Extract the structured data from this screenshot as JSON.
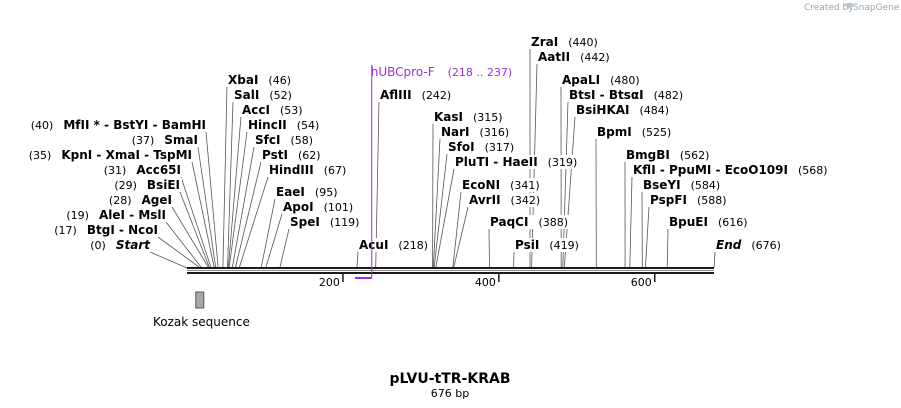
{
  "plasmid": {
    "name": "pLVU-tTR-KRAB",
    "length_label": "676 bp",
    "length": 676
  },
  "branding": {
    "created_by": "Created by",
    "product": "SnapGene"
  },
  "colors": {
    "backbone": "#1a1a1a",
    "primer": "#9b30d9",
    "feature": "#a9a9a9",
    "line": "#555555"
  },
  "axis_ticks": [
    {
      "label": "200",
      "value": 200
    },
    {
      "label": "400",
      "value": 400
    },
    {
      "label": "600",
      "value": 600
    }
  ],
  "primer": {
    "name": "hUBCpro-F",
    "range": "(218 .. 237)",
    "start": 218,
    "end": 237
  },
  "feature": {
    "name": "Kozak sequence",
    "start": 10,
    "end": 18
  },
  "sites": [
    {
      "pos": 46,
      "pos_label": "(46)",
      "parts": [
        {
          "n": "XbaI",
          "sep": ""
        }
      ]
    },
    {
      "pos": 52,
      "pos_label": "(52)",
      "parts": [
        {
          "n": "SalI",
          "sep": ""
        }
      ]
    },
    {
      "pos": 53,
      "pos_label": "(53)",
      "parts": [
        {
          "n": "AccI",
          "sep": ""
        }
      ]
    },
    {
      "pos": 54,
      "pos_label": "(54)",
      "parts": [
        {
          "n": "HincII",
          "sep": ""
        }
      ]
    },
    {
      "pos": 58,
      "pos_label": "(58)",
      "parts": [
        {
          "n": "SfcI",
          "sep": ""
        }
      ]
    },
    {
      "pos": 62,
      "pos_label": "(62)",
      "parts": [
        {
          "n": "PstI",
          "sep": ""
        }
      ]
    },
    {
      "pos": 67,
      "pos_label": "(67)",
      "parts": [
        {
          "n": "HindIII",
          "sep": ""
        }
      ]
    },
    {
      "pos": 95,
      "pos_label": "(95)",
      "parts": [
        {
          "n": "EaeI",
          "sep": ""
        }
      ]
    },
    {
      "pos": 101,
      "pos_label": "(101)",
      "parts": [
        {
          "n": "ApoI",
          "sep": ""
        }
      ]
    },
    {
      "pos": 119,
      "pos_label": "(119)",
      "parts": [
        {
          "n": "SpeI",
          "sep": ""
        }
      ]
    },
    {
      "pos": 40,
      "pos_label": "(40)",
      "parts": [
        {
          "n": "MfII *",
          "sep": " - "
        },
        {
          "n": "BstYI",
          "sep": " - "
        },
        {
          "n": "BamHI",
          "sep": ""
        }
      ]
    },
    {
      "pos": 37,
      "pos_label": "(37)",
      "parts": [
        {
          "n": "SmaI",
          "sep": ""
        }
      ]
    },
    {
      "pos": 35,
      "pos_label": "(35)",
      "parts": [
        {
          "n": "KpnI",
          "sep": " - "
        },
        {
          "n": "XmaI",
          "sep": " - "
        },
        {
          "n": "TspMI",
          "sep": ""
        }
      ]
    },
    {
      "pos": 31,
      "pos_label": "(31)",
      "parts": [
        {
          "n": "Acc65I",
          "sep": ""
        }
      ]
    },
    {
      "pos": 29,
      "pos_label": "(29)",
      "parts": [
        {
          "n": "BsiEI",
          "sep": ""
        }
      ]
    },
    {
      "pos": 28,
      "pos_label": "(28)",
      "parts": [
        {
          "n": "AgeI",
          "sep": ""
        }
      ]
    },
    {
      "pos": 19,
      "pos_label": "(19)",
      "parts": [
        {
          "n": "AleI",
          "sep": " - "
        },
        {
          "n": "MslI",
          "sep": ""
        }
      ]
    },
    {
      "pos": 17,
      "pos_label": "(17)",
      "parts": [
        {
          "n": "BtgI",
          "sep": " - "
        },
        {
          "n": "NcoI",
          "sep": ""
        }
      ]
    },
    {
      "pos": 0,
      "pos_label": "(0)",
      "parts": [
        {
          "n": "Start",
          "sep": ""
        }
      ],
      "italic": true
    },
    {
      "pos": 242,
      "pos_label": "(242)",
      "parts": [
        {
          "n": "AflIII",
          "sep": ""
        }
      ]
    },
    {
      "pos": 218,
      "pos_label": "(218)",
      "parts": [
        {
          "n": "AcuI",
          "sep": ""
        }
      ]
    },
    {
      "pos": 315,
      "pos_label": "(315)",
      "parts": [
        {
          "n": "KasI",
          "sep": ""
        }
      ]
    },
    {
      "pos": 316,
      "pos_label": "(316)",
      "parts": [
        {
          "n": "NarI",
          "sep": ""
        }
      ]
    },
    {
      "pos": 317,
      "pos_label": "(317)",
      "parts": [
        {
          "n": "SfoI",
          "sep": ""
        }
      ]
    },
    {
      "pos": 319,
      "pos_label": "(319)",
      "parts": [
        {
          "n": "PluTI",
          "sep": " - "
        },
        {
          "n": "HaeII",
          "sep": ""
        }
      ]
    },
    {
      "pos": 341,
      "pos_label": "(341)",
      "parts": [
        {
          "n": "EcoNI",
          "sep": ""
        }
      ]
    },
    {
      "pos": 342,
      "pos_label": "(342)",
      "parts": [
        {
          "n": "AvrII",
          "sep": ""
        }
      ]
    },
    {
      "pos": 388,
      "pos_label": "(388)",
      "parts": [
        {
          "n": "PaqCI",
          "sep": ""
        }
      ]
    },
    {
      "pos": 419,
      "pos_label": "(419)",
      "parts": [
        {
          "n": "PsiI",
          "sep": ""
        }
      ]
    },
    {
      "pos": 440,
      "pos_label": "(440)",
      "parts": [
        {
          "n": "ZraI",
          "sep": ""
        }
      ]
    },
    {
      "pos": 442,
      "pos_label": "(442)",
      "parts": [
        {
          "n": "AatII",
          "sep": ""
        }
      ]
    },
    {
      "pos": 480,
      "pos_label": "(480)",
      "parts": [
        {
          "n": "ApaLI",
          "sep": ""
        }
      ]
    },
    {
      "pos": 482,
      "pos_label": "(482)",
      "parts": [
        {
          "n": "BtsI",
          "sep": " - "
        },
        {
          "n": "BtsαI",
          "sep": ""
        }
      ]
    },
    {
      "pos": 484,
      "pos_label": "(484)",
      "parts": [
        {
          "n": "BsiHKAI",
          "sep": ""
        }
      ]
    },
    {
      "pos": 525,
      "pos_label": "(525)",
      "parts": [
        {
          "n": "BpmI",
          "sep": ""
        }
      ]
    },
    {
      "pos": 562,
      "pos_label": "(562)",
      "parts": [
        {
          "n": "BmgBI",
          "sep": ""
        }
      ]
    },
    {
      "pos": 568,
      "pos_label": "(568)",
      "parts": [
        {
          "n": "KflI",
          "sep": " - "
        },
        {
          "n": "PpuMI",
          "sep": " - "
        },
        {
          "n": "EcoO109I",
          "sep": ""
        }
      ]
    },
    {
      "pos": 584,
      "pos_label": "(584)",
      "parts": [
        {
          "n": "BseYI",
          "sep": ""
        }
      ]
    },
    {
      "pos": 588,
      "pos_label": "(588)",
      "parts": [
        {
          "n": "PspFI",
          "sep": ""
        }
      ]
    },
    {
      "pos": 616,
      "pos_label": "(616)",
      "parts": [
        {
          "n": "BpuEI",
          "sep": ""
        }
      ]
    },
    {
      "pos": 676,
      "pos_label": "(676)",
      "parts": [
        {
          "n": "End",
          "sep": ""
        }
      ],
      "italic": true
    }
  ]
}
